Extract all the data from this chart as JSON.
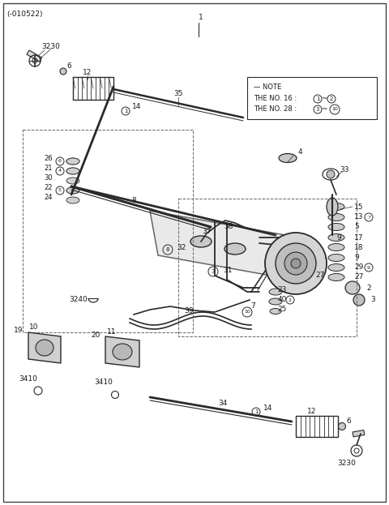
{
  "bg_color": "#ffffff",
  "line_color": "#2a2a2a",
  "text_color": "#1a1a1a",
  "fig_width": 4.8,
  "fig_height": 6.23,
  "dpi": 100,
  "part_id": "(-010522)",
  "note": [
    "NOTE",
    "THE NO. 16 :",
    "THE NO. 28 :"
  ],
  "note_circ1a": "1",
  "note_circ1b": "2",
  "note_circ2a": "3",
  "note_circ2b": "10"
}
